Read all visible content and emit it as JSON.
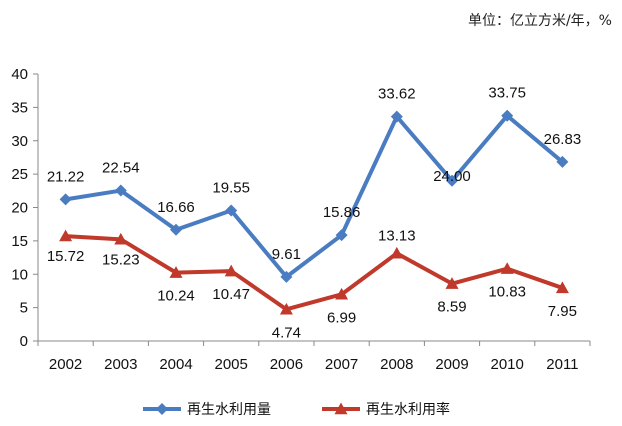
{
  "chart_data": {
    "type": "line",
    "unit_note": "单位：亿立方米/年，%",
    "categories": [
      "2002",
      "2003",
      "2004",
      "2005",
      "2006",
      "2007",
      "2008",
      "2009",
      "2010",
      "2011"
    ],
    "ylim": [
      0,
      40
    ],
    "yticks": [
      0,
      5,
      10,
      15,
      20,
      25,
      30,
      35,
      40
    ],
    "grid": false,
    "legend_position": "bottom",
    "series": [
      {
        "name": "再生水利用量",
        "color": "#4a7cc2",
        "marker": "diamond",
        "values": [
          21.22,
          22.54,
          16.66,
          19.55,
          9.61,
          15.86,
          33.62,
          24.0,
          33.75,
          26.83
        ],
        "labels": [
          "21.22",
          "22.54",
          "16.66",
          "19.55",
          "9.61",
          "15.86",
          "33.62",
          "24.00",
          "33.75",
          "26.83"
        ]
      },
      {
        "name": "再生水利用率",
        "color": "#c0392b",
        "marker": "triangle",
        "values": [
          15.72,
          15.23,
          10.24,
          10.47,
          4.74,
          6.99,
          13.13,
          8.59,
          10.83,
          7.95
        ],
        "labels": [
          "15.72",
          "15.23",
          "10.24",
          "10.47",
          "4.74",
          "6.99",
          "13.13",
          "8.59",
          "10.83",
          "7.95"
        ]
      }
    ]
  }
}
